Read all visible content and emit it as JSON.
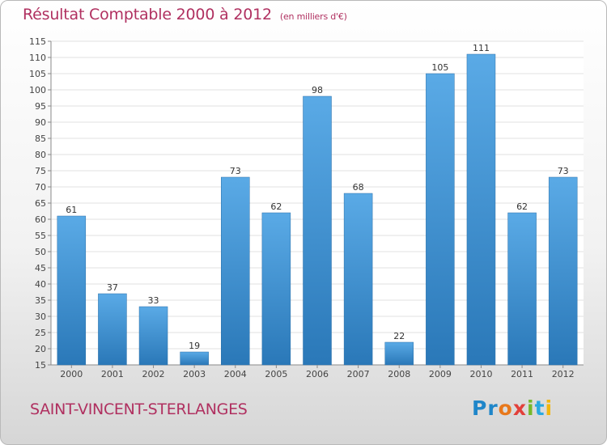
{
  "header": {
    "title": "Résultat Comptable 2000 à 2012",
    "subtitle": "(en milliers d'€)"
  },
  "footer": {
    "city": "SAINT-VINCENT-STERLANGES",
    "logo_parts": [
      "Pr",
      "o",
      "x",
      "i",
      "t",
      "i"
    ]
  },
  "chart_data": {
    "type": "bar",
    "title": "Résultat Comptable 2000 à 2012",
    "subtitle": "(en milliers d'€)",
    "categories": [
      "2000",
      "2001",
      "2002",
      "2003",
      "2004",
      "2005",
      "2006",
      "2007",
      "2008",
      "2009",
      "2010",
      "2011",
      "2012"
    ],
    "values": [
      61,
      37,
      33,
      19,
      73,
      62,
      98,
      68,
      22,
      105,
      111,
      62,
      73
    ],
    "ylim": [
      15,
      115
    ],
    "yticks": [
      15,
      20,
      25,
      30,
      35,
      40,
      45,
      50,
      55,
      60,
      65,
      70,
      75,
      80,
      85,
      90,
      95,
      100,
      105,
      110,
      115
    ],
    "grid": true,
    "colors": {
      "bar_light": "#5aaae6",
      "bar_dark": "#2a78b8",
      "grid": "#e0e0e0",
      "axis": "#8a8a8a"
    }
  }
}
